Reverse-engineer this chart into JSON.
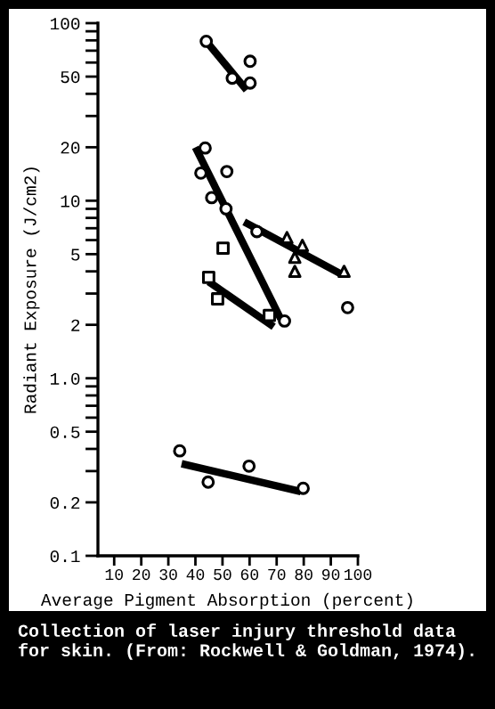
{
  "chart_data": {
    "type": "scatter",
    "xlabel": "Average Pigment Absorption (percent)",
    "ylabel": "Radiant Exposure (J/cm2)",
    "annotations": [
      "Collection of laser injury threshold data for skin. (From: Rockwell & Goldman, 1974)."
    ],
    "log": "y",
    "xlim": [
      4,
      100
    ],
    "xticks": [
      10,
      20,
      30,
      40,
      50,
      60,
      70,
      80,
      90,
      100
    ],
    "ylim": [
      0.1,
      100
    ],
    "yticks": [
      {
        "value": 0.1,
        "label": "0.1"
      },
      {
        "value": 0.2,
        "label": "0.2"
      },
      {
        "value": 0.3,
        "label": null
      },
      {
        "value": 0.4,
        "label": null
      },
      {
        "value": 0.5,
        "label": "0.5"
      },
      {
        "value": 0.6,
        "label": null
      },
      {
        "value": 0.7,
        "label": null
      },
      {
        "value": 0.8,
        "label": null
      },
      {
        "value": 0.9,
        "label": null
      },
      {
        "value": 1,
        "label": "1.0"
      },
      {
        "value": 2,
        "label": "2"
      },
      {
        "value": 3,
        "label": null
      },
      {
        "value": 4,
        "label": null
      },
      {
        "value": 5,
        "label": "5"
      },
      {
        "value": 6,
        "label": null
      },
      {
        "value": 7,
        "label": null
      },
      {
        "value": 8,
        "label": null
      },
      {
        "value": 9,
        "label": null
      },
      10,
      20,
      {
        "value": 30,
        "label": null
      },
      {
        "value": 40,
        "label": null
      },
      50,
      {
        "value": 60,
        "label": null
      },
      {
        "value": 70,
        "label": null
      },
      {
        "value": 80,
        "label": null
      },
      {
        "value": 90,
        "label": null
      },
      100
    ],
    "grid": false,
    "series": [
      {
        "type": "scatter",
        "marker": "circle",
        "color": "#000000",
        "x": [
          44,
          53.6,
          60.2,
          60.2
        ],
        "values": [
          79,
          49,
          61,
          46
        ]
      },
      {
        "type": "line",
        "marker": "none",
        "color": "#000000",
        "x": [
          44,
          58.9
        ],
        "values": [
          79,
          42
        ]
      },
      {
        "type": "scatter",
        "marker": "circle",
        "color": "#000000",
        "x": [
          43.6,
          42,
          51.6,
          46,
          51.3,
          62.7,
          72.9,
          96.2
        ],
        "values": [
          19.8,
          14.3,
          14.6,
          10.4,
          9.0,
          6.7,
          2.1,
          2.5
        ]
      },
      {
        "type": "line",
        "marker": "none",
        "color": "#000000",
        "x": [
          40,
          71.5
        ],
        "values": [
          20,
          2.16
        ]
      },
      {
        "type": "scatter",
        "marker": "triangle",
        "color": "#000000",
        "x": [
          73.8,
          79.5,
          76.7,
          76.7,
          94.9
        ],
        "values": [
          6.2,
          5.6,
          4.8,
          4.0,
          4.0
        ]
      },
      {
        "type": "line",
        "marker": "none",
        "color": "#000000",
        "x": [
          58,
          93.3
        ],
        "values": [
          7.6,
          3.9
        ]
      },
      {
        "type": "scatter",
        "marker": "square",
        "color": "#000000",
        "x": [
          50.2,
          44.9,
          48.2,
          67.3
        ],
        "values": [
          5.4,
          3.7,
          2.8,
          2.26
        ]
      },
      {
        "type": "line",
        "marker": "none",
        "color": "#000000",
        "x": [
          44.9,
          68.9
        ],
        "values": [
          3.5,
          1.95
        ]
      },
      {
        "type": "scatter",
        "marker": "circle",
        "color": "#000000",
        "x": [
          34.2,
          44.7,
          59.8,
          79.8
        ],
        "values": [
          0.39,
          0.26,
          0.32,
          0.24
        ]
      },
      {
        "type": "line",
        "marker": "none",
        "color": "#000000",
        "x": [
          34.9,
          78.9
        ],
        "values": [
          0.33,
          0.23
        ]
      }
    ]
  }
}
